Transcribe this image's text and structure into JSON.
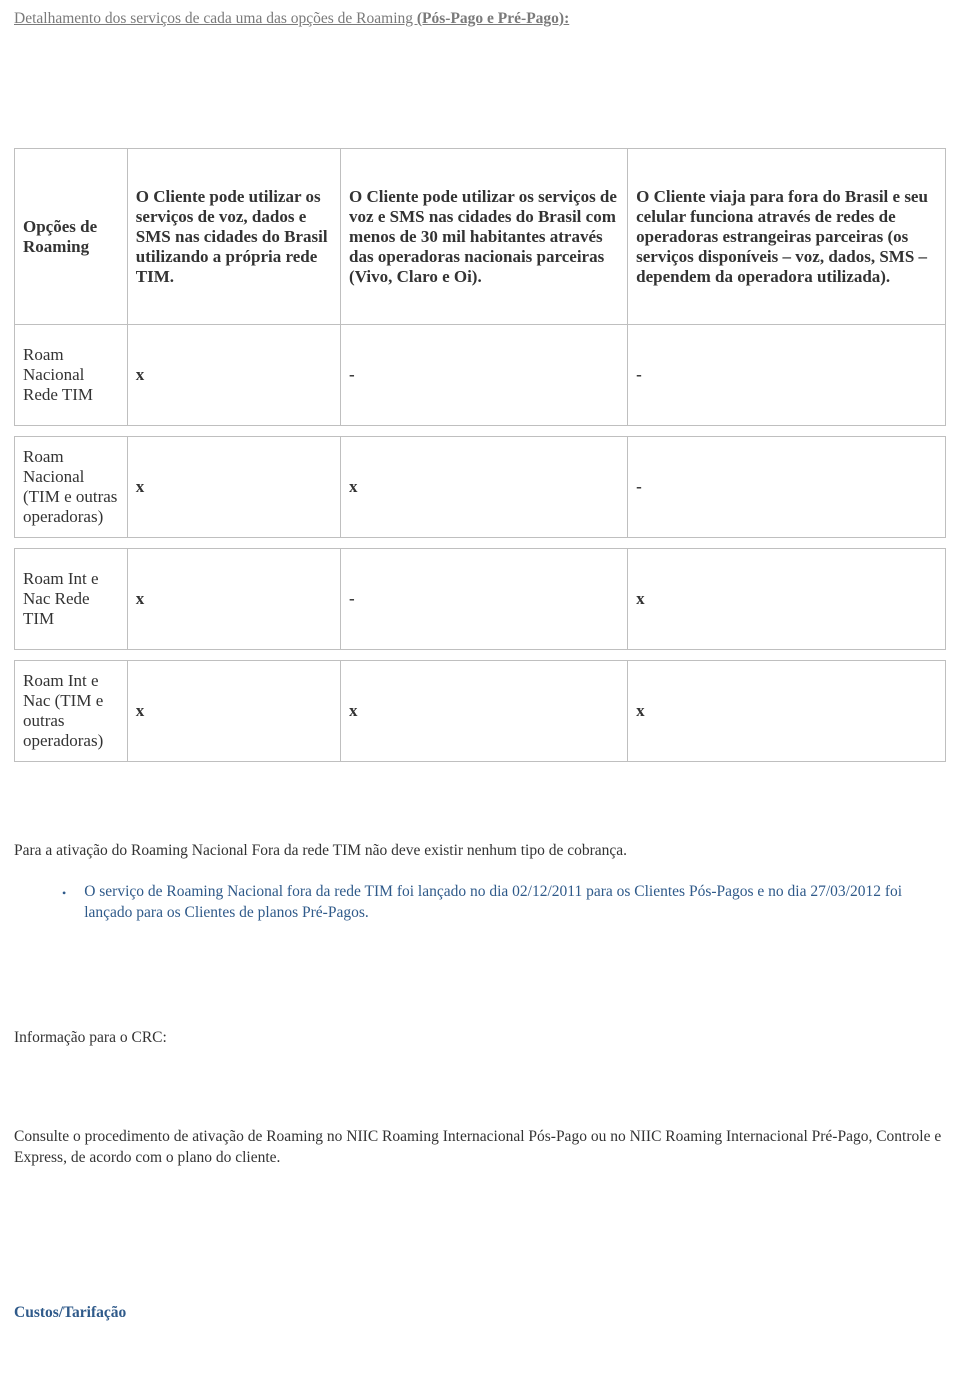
{
  "heading": {
    "prefix": "Detalhamento dos serviços de cada uma das opções de Roaming ",
    "bold": "(Pós-Pago e Pré-Pago):"
  },
  "table": {
    "headers": [
      "Opções de Roaming",
      "O Cliente pode utilizar os serviços de voz, dados e SMS nas cidades do Brasil utilizando a própria rede TIM.",
      "O Cliente pode utilizar os serviços de voz e SMS nas cidades do Brasil com menos de 30 mil habitantes através das operadoras nacionais parceiras (Vivo, Claro e Oi).",
      "O Cliente viaja para fora do Brasil e seu celular funciona através de redes de operadoras estrangeiras parceiras (os serviços disponíveis – voz, dados, SMS – dependem da operadora utilizada)."
    ],
    "rows": [
      {
        "label": "Roam Nacional Rede TIM",
        "cells": [
          "x",
          "-",
          "-"
        ]
      },
      {
        "label": "Roam Nacional (TIM e outras operadoras)",
        "cells": [
          "x",
          "x",
          "-"
        ]
      },
      {
        "label": "Roam Int e Nac Rede TIM",
        "cells": [
          "x",
          "-",
          "x"
        ]
      },
      {
        "label": "Roam Int e Nac (TIM e outras operadoras)",
        "cells": [
          "x",
          "x",
          "x"
        ]
      }
    ]
  },
  "para_activation": "Para a ativação do Roaming Nacional Fora da rede TIM não deve existir nenhum tipo de cobrança.",
  "bullet": "O serviço de Roaming Nacional fora da rede TIM foi lançado no dia 02/12/2011 para os Clientes Pós-Pagos e no dia 27/03/2012 foi lançado para os Clientes de planos Pré-Pagos.",
  "info_crc": "Informação para o CRC:",
  "consulte": "Consulte o procedimento de ativação de Roaming no NIIC Roaming Internacional Pós-Pago ou no NIIC Roaming Internacional Pré-Pago, Controle e Express, de acordo com o plano do cliente.",
  "custos": "Custos/Tarifação"
}
